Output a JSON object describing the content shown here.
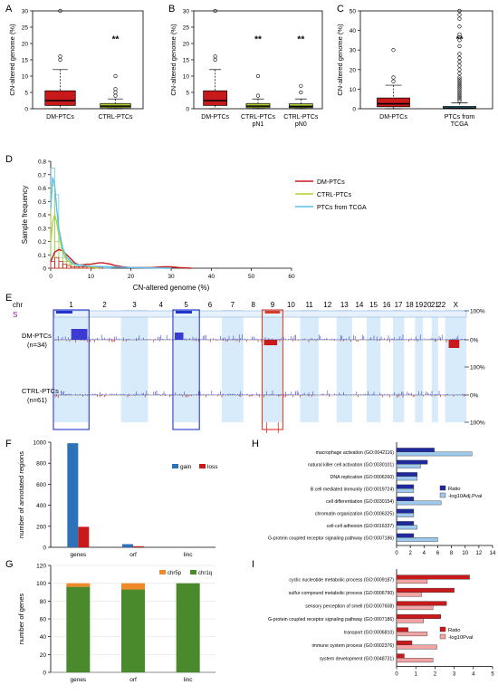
{
  "panels": {
    "A": "A",
    "B": "B",
    "C": "C",
    "D": "D",
    "E": "E",
    "F": "F",
    "G": "G",
    "H": "H",
    "I": "I"
  },
  "colors": {
    "dm": "#c8191b",
    "ctrl": "#b2d235",
    "tcga": "#5bc0eb",
    "band": "#d7ebfa",
    "gain": "#2b72b9",
    "loss": "#c8191b",
    "chr5p": "#ef8a2b",
    "chr1q": "#4b8a2c",
    "ratio_blue": "#1f2a9e",
    "pval_blue": "#9ec8ec",
    "ratio_red": "#c8191b",
    "pval_red": "#f2a4a4"
  },
  "chart_data": [
    {
      "id": "A",
      "type": "box",
      "ylabel": "CN-altered genome (%)",
      "ylim": [
        0,
        30
      ],
      "yticks": [
        0,
        5,
        10,
        15,
        20,
        25,
        30
      ],
      "categories": [
        "DM-PTCs",
        "CTRL-PTCs"
      ],
      "boxes": [
        {
          "q1": 1.0,
          "median": 2.5,
          "q3": 5.5,
          "whisker_low": 0,
          "whisker_high": 12,
          "outliers": [
            15,
            16,
            30
          ]
        },
        {
          "q1": 0.3,
          "median": 0.8,
          "q3": 1.6,
          "whisker_low": 0,
          "whisker_high": 3,
          "outliers": [
            4,
            5,
            6,
            10
          ]
        }
      ],
      "significance": [
        "",
        "**"
      ]
    },
    {
      "id": "B",
      "type": "box",
      "ylabel": "CN-altered genome (%)",
      "ylim": [
        0,
        30
      ],
      "yticks": [
        0,
        5,
        10,
        15,
        20,
        25,
        30
      ],
      "categories": [
        "DM-PTCs",
        "CTRL-PTCs\npN1",
        "CTRL-PTCs\npN0"
      ],
      "boxes": [
        {
          "q1": 1.0,
          "median": 2.5,
          "q3": 5.5,
          "whisker_low": 0,
          "whisker_high": 12,
          "outliers": [
            15,
            16,
            30
          ]
        },
        {
          "q1": 0.3,
          "median": 0.8,
          "q3": 1.6,
          "whisker_low": 0,
          "whisker_high": 3,
          "outliers": [
            4,
            10
          ]
        },
        {
          "q1": 0.3,
          "median": 0.7,
          "q3": 1.5,
          "whisker_low": 0,
          "whisker_high": 3,
          "outliers": [
            5,
            7
          ]
        }
      ],
      "significance": [
        "",
        "**",
        "**"
      ]
    },
    {
      "id": "C",
      "type": "box",
      "ylabel": "CN-altered genome (%)",
      "ylim": [
        0,
        50
      ],
      "yticks": [
        0,
        10,
        20,
        30,
        40,
        50
      ],
      "categories": [
        "DM-PTCs",
        "PTCs from\nTCGA"
      ],
      "boxes": [
        {
          "q1": 1.0,
          "median": 2.5,
          "q3": 5.5,
          "whisker_low": 0,
          "whisker_high": 12,
          "outliers": [
            14,
            16,
            30
          ]
        },
        {
          "q1": 0.1,
          "median": 0.4,
          "q3": 1.2,
          "whisker_low": 0,
          "whisker_high": 3,
          "outliers": [
            4,
            5,
            6,
            7,
            8,
            9,
            10,
            11,
            12,
            13,
            14,
            15,
            16,
            18,
            20,
            22,
            24,
            26,
            28,
            32,
            35,
            38,
            42,
            46,
            48,
            50
          ]
        }
      ],
      "significance": [
        "",
        "**"
      ]
    },
    {
      "id": "D",
      "type": "histogram-density",
      "xlabel": "CN-altered genome (%)",
      "ylabel": "Sample frequency",
      "xlim": [
        0,
        60
      ],
      "xticks": [
        0,
        10,
        20,
        30,
        40,
        50,
        60
      ],
      "ylim": [
        0,
        0.8
      ],
      "yticks": [
        0,
        0.1,
        0.2,
        0.3,
        0.4,
        0.5,
        0.6,
        0.7,
        0.8
      ],
      "series": [
        {
          "name": "DM-PTCs",
          "key": "dm",
          "hist": [
            0.05,
            0.08,
            0.05,
            0.03,
            0.02,
            0.01,
            0.01,
            0.01,
            0.01,
            0.01,
            0.01,
            0.01,
            0.01
          ],
          "density": [
            [
              0,
              0.05
            ],
            [
              1,
              0.12
            ],
            [
              2,
              0.14
            ],
            [
              3,
              0.13
            ],
            [
              4,
              0.1
            ],
            [
              5,
              0.07
            ],
            [
              6,
              0.04
            ],
            [
              7,
              0.025
            ],
            [
              8,
              0.025
            ],
            [
              9,
              0.03
            ],
            [
              10,
              0.03
            ],
            [
              11,
              0.035
            ],
            [
              12,
              0.04
            ],
            [
              13,
              0.04
            ],
            [
              14,
              0.035
            ],
            [
              15,
              0.03
            ],
            [
              16,
              0.02
            ],
            [
              18,
              0.01
            ],
            [
              20,
              0.005
            ],
            [
              25,
              0.005
            ],
            [
              28,
              0.01
            ],
            [
              30,
              0.01
            ],
            [
              32,
              0.005
            ],
            [
              35,
              0.0
            ]
          ]
        },
        {
          "name": "CTRL-PTCs",
          "key": "ctrl",
          "hist": [
            0.62,
            0.2,
            0.08,
            0.05,
            0.03,
            0.02,
            0.01,
            0.01,
            0.01,
            0.01
          ],
          "density": [
            [
              0,
              0.2
            ],
            [
              0.5,
              0.35
            ],
            [
              1,
              0.4
            ],
            [
              1.5,
              0.35
            ],
            [
              2,
              0.25
            ],
            [
              3,
              0.12
            ],
            [
              4,
              0.06
            ],
            [
              5,
              0.04
            ],
            [
              6,
              0.03
            ],
            [
              8,
              0.02
            ],
            [
              10,
              0.01
            ],
            [
              12,
              0.0
            ]
          ]
        },
        {
          "name": "PTCs from TCGA",
          "key": "tcga",
          "hist": [
            0.75,
            0.55,
            0.15,
            0.08,
            0.05,
            0.03,
            0.02,
            0.02,
            0.01,
            0.01,
            0.01,
            0.01,
            0.01,
            0.01,
            0.01
          ],
          "density": [
            [
              0,
              0.45
            ],
            [
              0.5,
              0.68
            ],
            [
              1,
              0.62
            ],
            [
              1.5,
              0.45
            ],
            [
              2,
              0.3
            ],
            [
              3,
              0.15
            ],
            [
              4,
              0.08
            ],
            [
              5,
              0.05
            ],
            [
              6,
              0.03
            ],
            [
              8,
              0.02
            ],
            [
              10,
              0.015
            ],
            [
              15,
              0.01
            ],
            [
              20,
              0.005
            ],
            [
              30,
              0.0
            ]
          ]
        }
      ]
    },
    {
      "id": "E",
      "type": "genome-track",
      "chr_label": "chr",
      "chromosomes": [
        "1",
        "2",
        "3",
        "4",
        "5",
        "6",
        "7",
        "8",
        "9",
        "10",
        "11",
        "12",
        "13",
        "14",
        "15",
        "16",
        "17",
        "18",
        "19",
        "20",
        "21",
        "22",
        "X"
      ],
      "rows": [
        {
          "label": "DM-PTCs",
          "sub": "(n=34)"
        },
        {
          "label": "CTRL-PTCs",
          "sub": "(n=61)"
        }
      ],
      "side_ticks": [
        "100%",
        "0%",
        "100%",
        "0%",
        "100%"
      ],
      "top_label": "S",
      "highlight_blue": [
        "1",
        "5"
      ],
      "highlight_red": [
        "9"
      ]
    },
    {
      "id": "F",
      "type": "bar",
      "ylabel": "number of annotated regions",
      "ylim": [
        0,
        1000
      ],
      "yticks": [
        0,
        200,
        400,
        600,
        800,
        1000
      ],
      "categories": [
        "genes",
        "orf",
        "linc"
      ],
      "series": [
        {
          "name": "gain",
          "values": [
            990,
            30,
            0
          ]
        },
        {
          "name": "loss",
          "values": [
            195,
            10,
            0
          ]
        }
      ]
    },
    {
      "id": "G",
      "type": "stacked-bar",
      "ylabel": "number of genes",
      "ylim": [
        0,
        120
      ],
      "yticks": [
        0,
        20,
        40,
        60,
        80,
        100,
        120
      ],
      "categories": [
        "genes",
        "orf",
        "linc"
      ],
      "series": [
        {
          "name": "chr1q",
          "values": [
            96,
            93,
            100
          ]
        },
        {
          "name": "chr5p",
          "values": [
            4,
            7,
            0
          ]
        }
      ],
      "legend": [
        "chr5p",
        "chr1q"
      ]
    },
    {
      "id": "H",
      "type": "hbar",
      "xlim": [
        0,
        14
      ],
      "xticks": [
        0,
        2,
        4,
        6,
        8,
        10,
        12,
        14
      ],
      "categories": [
        "macrophage activation (GO:0042116)",
        "natural killer cell activation (GO:0030101)",
        "DNA replication (GO:0006260)",
        "B cell mediated immunity (GO:0019724)",
        "cell differentiation (GO:0030154)",
        "chromatin organization (GO:0006325)",
        "cell-cell adhesion (GO:0016337)",
        "G-protein coupled receptor signaling pathway (GO:0007186)"
      ],
      "series": [
        {
          "name": "Ratio",
          "values": [
            5.5,
            4.5,
            3.0,
            2.5,
            2.5,
            2.5,
            2.5,
            2.5
          ]
        },
        {
          "name": "-log10Adj.Pval",
          "values": [
            11.0,
            3.5,
            3.0,
            2.5,
            6.5,
            2.5,
            3.0,
            6.0
          ]
        }
      ]
    },
    {
      "id": "I",
      "type": "hbar",
      "xlim": [
        0,
        5
      ],
      "xticks": [
        0,
        1,
        2,
        3,
        4,
        5
      ],
      "categories": [
        "cyclic nucleotide metabolic process (GO:0009187)",
        "sulfur compound metabolic process (GO:0006790)",
        "sensory perception of smell (GO:0007608)",
        "G-protein coupled receptor signaling pathway (GO:0007186)",
        "transport (GO:0006810)",
        "immune system process (GO:0002376)",
        "system development (GO:0048731)"
      ],
      "series": [
        {
          "name": "Ratio",
          "values": [
            3.8,
            3.0,
            2.6,
            2.3,
            0.6,
            0.8,
            0.4
          ]
        },
        {
          "name": "-log10Pval",
          "values": [
            1.6,
            1.3,
            1.9,
            1.4,
            1.6,
            2.1,
            1.9
          ]
        }
      ]
    }
  ]
}
